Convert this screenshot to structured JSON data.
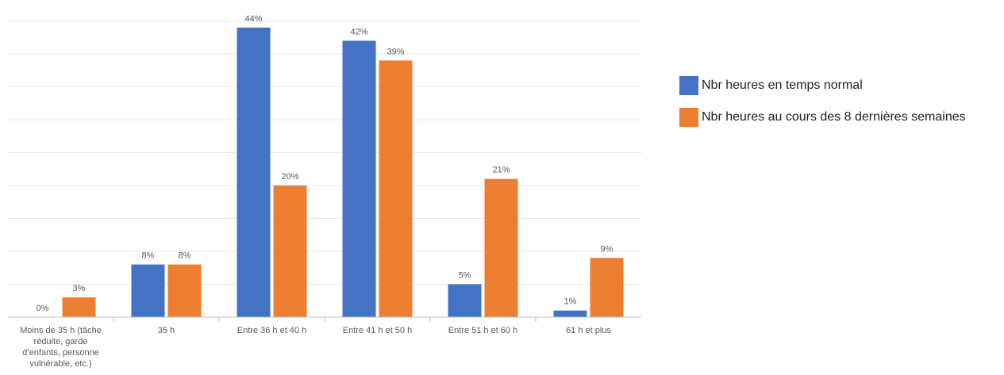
{
  "chart_data": {
    "type": "bar",
    "categories": [
      [
        "Moins de 35 h (tâche",
        "réduite, garde",
        "d’enfants, personne",
        "vulnérable, etc.)"
      ],
      [
        "35 h"
      ],
      [
        "Entre 36 h et 40 h"
      ],
      [
        "Entre 41 h et 50 h"
      ],
      [
        "Entre 51 h et 60 h"
      ],
      [
        "61 h et plus"
      ]
    ],
    "series": [
      {
        "name": "Nbr heures en temps normal",
        "color": "#4472C4",
        "values": [
          0,
          8,
          44,
          42,
          5,
          1
        ],
        "labels": [
          "0%",
          "8%",
          "44%",
          "42%",
          "5%",
          "1%"
        ]
      },
      {
        "name": "Nbr heures au cours des 8 dernières semaines",
        "color": "#ED7D31",
        "values": [
          3,
          8,
          20,
          39,
          21,
          9
        ],
        "labels": [
          "3%",
          "8%",
          "20%",
          "39%",
          "21%",
          "9%"
        ]
      }
    ],
    "ylim": [
      0,
      45
    ],
    "unit": "%",
    "grid": true,
    "legend_position": "right"
  }
}
